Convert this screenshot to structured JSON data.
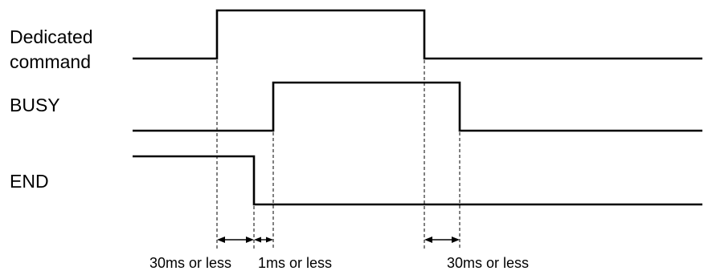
{
  "signals": {
    "dedicated_command_line1": "Dedicated",
    "dedicated_command_line2": "command",
    "busy": "BUSY",
    "end": "END"
  },
  "timings": {
    "t1": "30ms or less",
    "t2": "1ms or less",
    "t3": "30ms or less"
  },
  "colors": {
    "line": "#000000",
    "background": "#ffffff"
  }
}
